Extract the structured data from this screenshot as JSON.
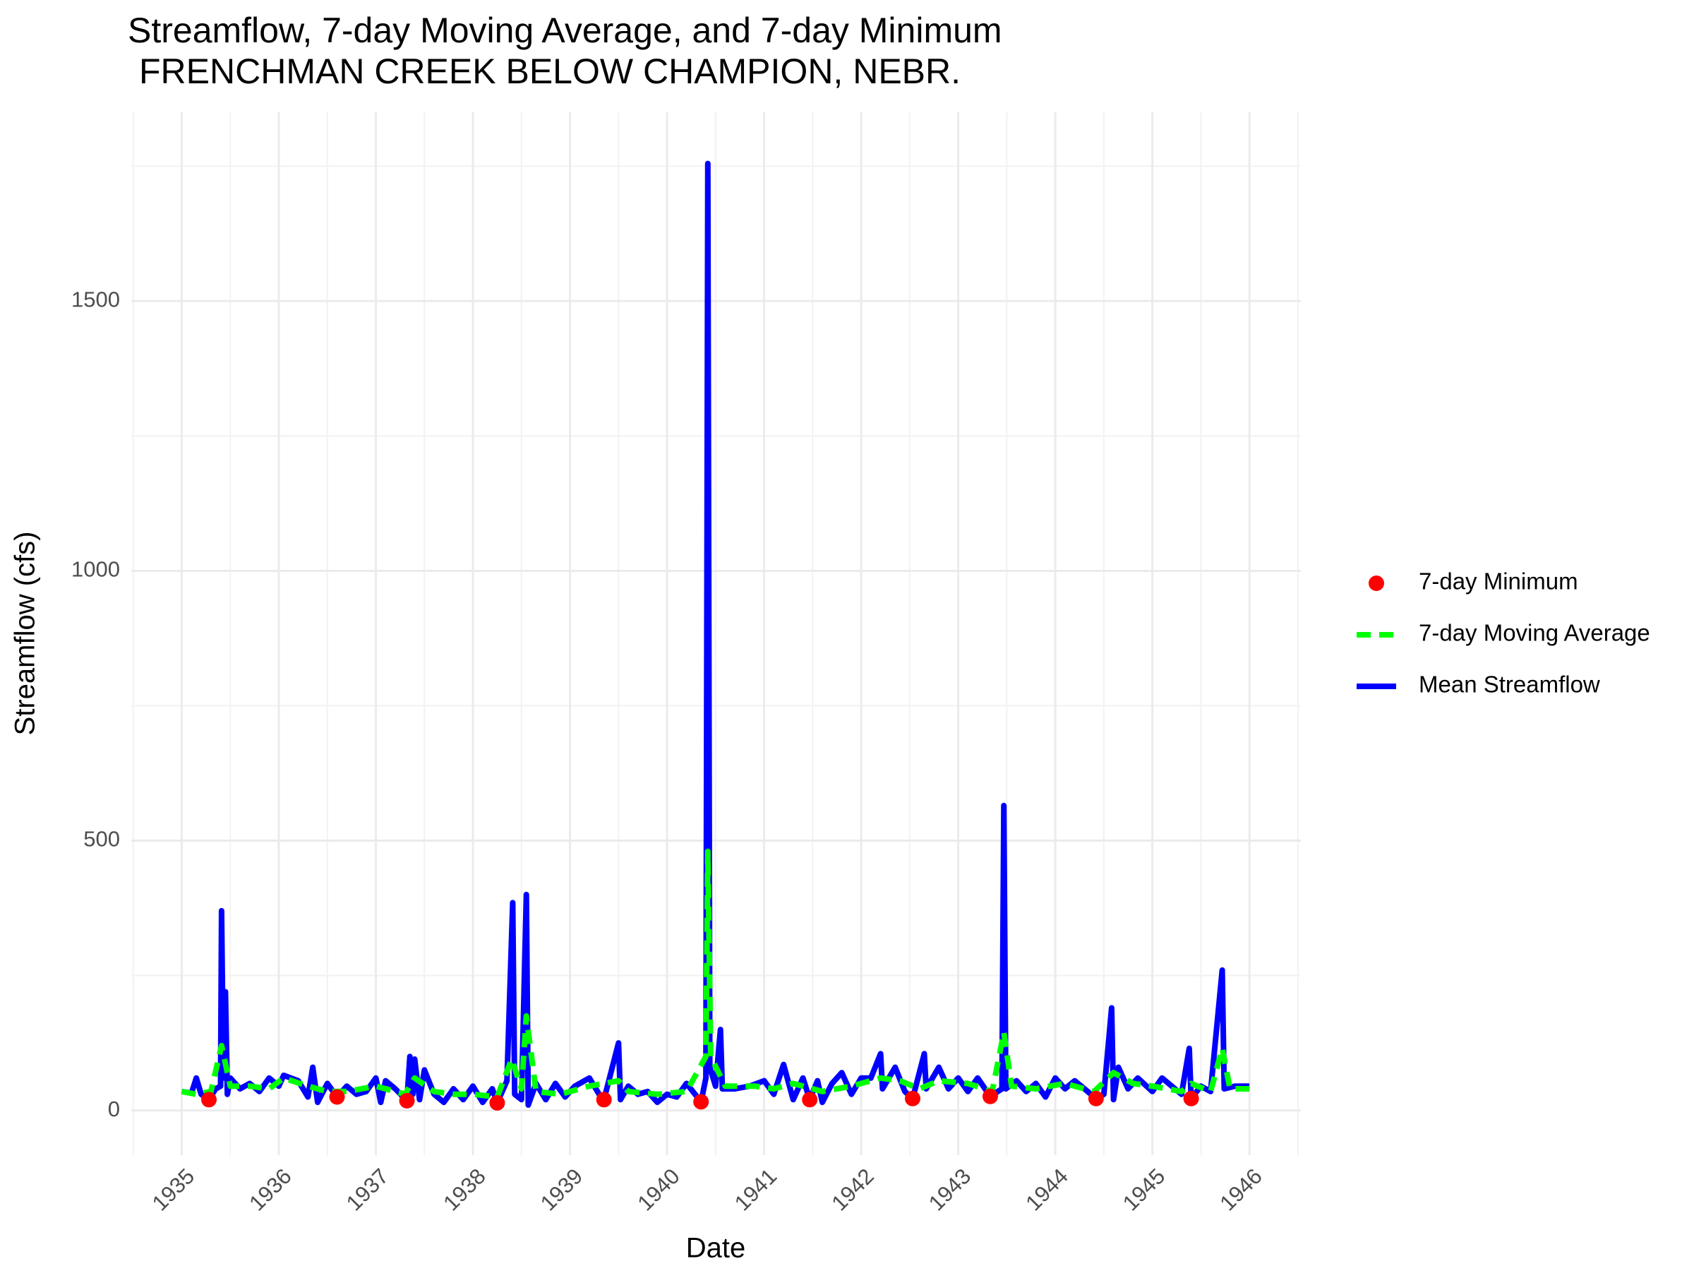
{
  "chart_data": {
    "type": "line",
    "title": "Streamflow, 7-day Moving Average, and 7-day Minimum",
    "subtitle": "FRENCHMAN CREEK BELOW CHAMPION, NEBR.",
    "x_label": "Date",
    "y_label": "Streamflow (cfs)",
    "xlim": [
      1934.48,
      1946.53
    ],
    "ylim": [
      -83,
      1850
    ],
    "xticks": [
      1935,
      1936,
      1937,
      1938,
      1939,
      1940,
      1941,
      1942,
      1943,
      1944,
      1945,
      1946
    ],
    "x_minor_ticks": [
      1934.5,
      1935.5,
      1936.5,
      1937.5,
      1938.5,
      1939.5,
      1940.5,
      1941.5,
      1942.5,
      1943.5,
      1944.5,
      1945.5,
      1946.5
    ],
    "yticks": [
      0,
      500,
      1000,
      1500
    ],
    "y_minor_ticks": [
      250,
      750,
      1250,
      1750
    ],
    "grid": true,
    "legend_position": "right",
    "series": [
      {
        "name": "7-day Minimum",
        "color": "#ff0000",
        "mark": "point",
        "x": [
          1935.28,
          1936.6,
          1937.32,
          1938.25,
          1939.35,
          1940.35,
          1941.47,
          1942.53,
          1943.33,
          1944.42,
          1945.4
        ],
        "values": [
          20,
          25,
          18,
          14,
          20,
          16,
          20,
          22,
          26,
          22,
          22
        ]
      },
      {
        "name": "7-day Moving Average",
        "color": "#00ff00",
        "mark": "dashed",
        "x": [
          1935.0,
          1935.15,
          1935.3,
          1935.41,
          1935.5,
          1935.7,
          1935.9,
          1936.05,
          1936.3,
          1936.5,
          1936.7,
          1937.0,
          1937.3,
          1937.4,
          1937.6,
          1937.8,
          1938.0,
          1938.25,
          1938.4,
          1938.5,
          1938.55,
          1938.65,
          1938.9,
          1939.2,
          1939.5,
          1939.6,
          1939.9,
          1940.2,
          1940.4,
          1940.42,
          1940.45,
          1940.6,
          1940.9,
          1941.1,
          1941.3,
          1941.6,
          1941.9,
          1942.2,
          1942.4,
          1942.6,
          1942.8,
          1943.1,
          1943.35,
          1943.47,
          1943.55,
          1943.8,
          1944.1,
          1944.4,
          1944.6,
          1944.8,
          1945.0,
          1945.3,
          1945.4,
          1945.6,
          1945.72,
          1945.8,
          1946.0
        ],
        "values": [
          35,
          30,
          35,
          120,
          45,
          45,
          40,
          60,
          45,
          35,
          35,
          45,
          30,
          60,
          35,
          30,
          30,
          25,
          95,
          40,
          175,
          35,
          30,
          45,
          55,
          35,
          30,
          35,
          100,
          480,
          100,
          45,
          45,
          40,
          50,
          35,
          45,
          60,
          55,
          40,
          55,
          50,
          35,
          145,
          45,
          40,
          50,
          35,
          70,
          50,
          45,
          35,
          50,
          35,
          115,
          40,
          40
        ]
      },
      {
        "name": "Mean Streamflow",
        "color": "#0000ff",
        "mark": "line",
        "x": [
          1935.0,
          1935.1,
          1935.15,
          1935.2,
          1935.28,
          1935.35,
          1935.4,
          1935.41,
          1935.43,
          1935.45,
          1935.47,
          1935.5,
          1935.6,
          1935.7,
          1935.8,
          1935.9,
          1936.0,
          1936.05,
          1936.2,
          1936.3,
          1936.35,
          1936.4,
          1936.5,
          1936.6,
          1936.7,
          1936.8,
          1936.9,
          1937.0,
          1937.05,
          1937.1,
          1937.2,
          1937.32,
          1937.35,
          1937.38,
          1937.4,
          1937.45,
          1937.5,
          1937.6,
          1937.7,
          1937.8,
          1937.9,
          1938.0,
          1938.1,
          1938.2,
          1938.25,
          1938.35,
          1938.41,
          1938.43,
          1938.5,
          1938.55,
          1938.57,
          1938.65,
          1938.75,
          1938.85,
          1938.95,
          1939.05,
          1939.2,
          1939.3,
          1939.35,
          1939.5,
          1939.52,
          1939.6,
          1939.7,
          1939.8,
          1939.9,
          1940.0,
          1940.1,
          1940.2,
          1940.35,
          1940.4,
          1940.42,
          1940.44,
          1940.5,
          1940.55,
          1940.57,
          1940.7,
          1940.85,
          1941.0,
          1941.1,
          1941.2,
          1941.3,
          1941.4,
          1941.47,
          1941.55,
          1941.6,
          1941.7,
          1941.8,
          1941.9,
          1942.0,
          1942.1,
          1942.2,
          1942.22,
          1942.35,
          1942.45,
          1942.53,
          1942.65,
          1942.67,
          1942.8,
          1942.9,
          1943.0,
          1943.1,
          1943.2,
          1943.33,
          1943.45,
          1943.47,
          1943.49,
          1943.6,
          1943.7,
          1943.8,
          1943.9,
          1944.0,
          1944.1,
          1944.2,
          1944.3,
          1944.42,
          1944.5,
          1944.58,
          1944.6,
          1944.65,
          1944.75,
          1944.85,
          1945.0,
          1945.1,
          1945.2,
          1945.3,
          1945.38,
          1945.4,
          1945.5,
          1945.6,
          1945.72,
          1945.74,
          1945.85,
          1946.0
        ],
        "values": [
          35,
          32,
          60,
          30,
          20,
          40,
          45,
          370,
          60,
          220,
          30,
          60,
          40,
          50,
          35,
          60,
          45,
          65,
          55,
          25,
          80,
          15,
          50,
          25,
          45,
          30,
          35,
          60,
          15,
          55,
          40,
          18,
          100,
          30,
          95,
          20,
          75,
          30,
          15,
          40,
          20,
          45,
          15,
          40,
          14,
          55,
          385,
          30,
          20,
          400,
          10,
          50,
          20,
          50,
          25,
          45,
          60,
          30,
          20,
          125,
          20,
          45,
          30,
          35,
          15,
          30,
          25,
          50,
          16,
          60,
          1755,
          80,
          45,
          150,
          40,
          40,
          45,
          55,
          30,
          85,
          20,
          60,
          20,
          55,
          15,
          50,
          70,
          30,
          60,
          60,
          105,
          40,
          80,
          35,
          22,
          105,
          40,
          80,
          40,
          60,
          35,
          60,
          26,
          40,
          565,
          40,
          55,
          35,
          50,
          25,
          60,
          40,
          55,
          40,
          22,
          30,
          190,
          20,
          80,
          40,
          60,
          35,
          60,
          45,
          30,
          115,
          22,
          45,
          35,
          260,
          40,
          45,
          45
        ]
      }
    ]
  }
}
